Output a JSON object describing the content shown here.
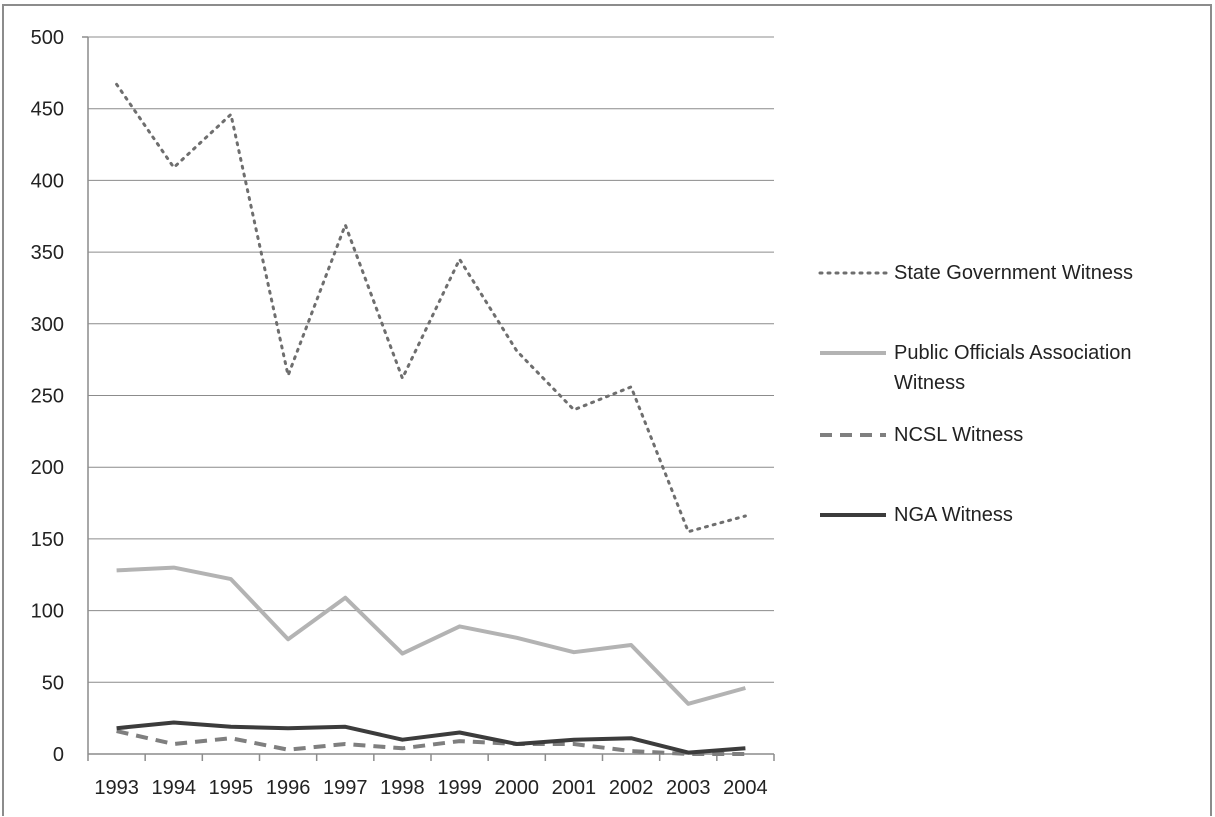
{
  "chart_data": {
    "type": "line",
    "title": "",
    "xlabel": "",
    "ylabel": "",
    "categories": [
      "1993",
      "1994",
      "1995",
      "1996",
      "1997",
      "1998",
      "1999",
      "2000",
      "2001",
      "2002",
      "2003",
      "2004"
    ],
    "ylim": [
      0,
      500
    ],
    "yticks": [
      "0",
      "50",
      "100",
      "150",
      "200",
      "250",
      "300",
      "350",
      "400",
      "450",
      "500"
    ],
    "grid": true,
    "legend_position": "right",
    "series": [
      {
        "name": "State Government Witness",
        "style": "dotted",
        "color": "#6e6e6e",
        "values": [
          467,
          409,
          446,
          264,
          369,
          262,
          345,
          281,
          240,
          256,
          155,
          166
        ]
      },
      {
        "name": "Public Officials Association Witness",
        "style": "solid",
        "color": "#b3b3b3",
        "values": [
          128,
          130,
          122,
          80,
          109,
          70,
          89,
          81,
          71,
          76,
          35,
          46
        ]
      },
      {
        "name": "NCSL Witness",
        "style": "dashed",
        "color": "#7f7f7f",
        "values": [
          16,
          7,
          11,
          3,
          7,
          4,
          9,
          7,
          7,
          2,
          0,
          0
        ]
      },
      {
        "name": "NGA Witness",
        "style": "solid",
        "color": "#3c3c3c",
        "values": [
          18,
          22,
          19,
          18,
          19,
          10,
          15,
          7,
          10,
          11,
          1,
          4
        ]
      }
    ]
  }
}
